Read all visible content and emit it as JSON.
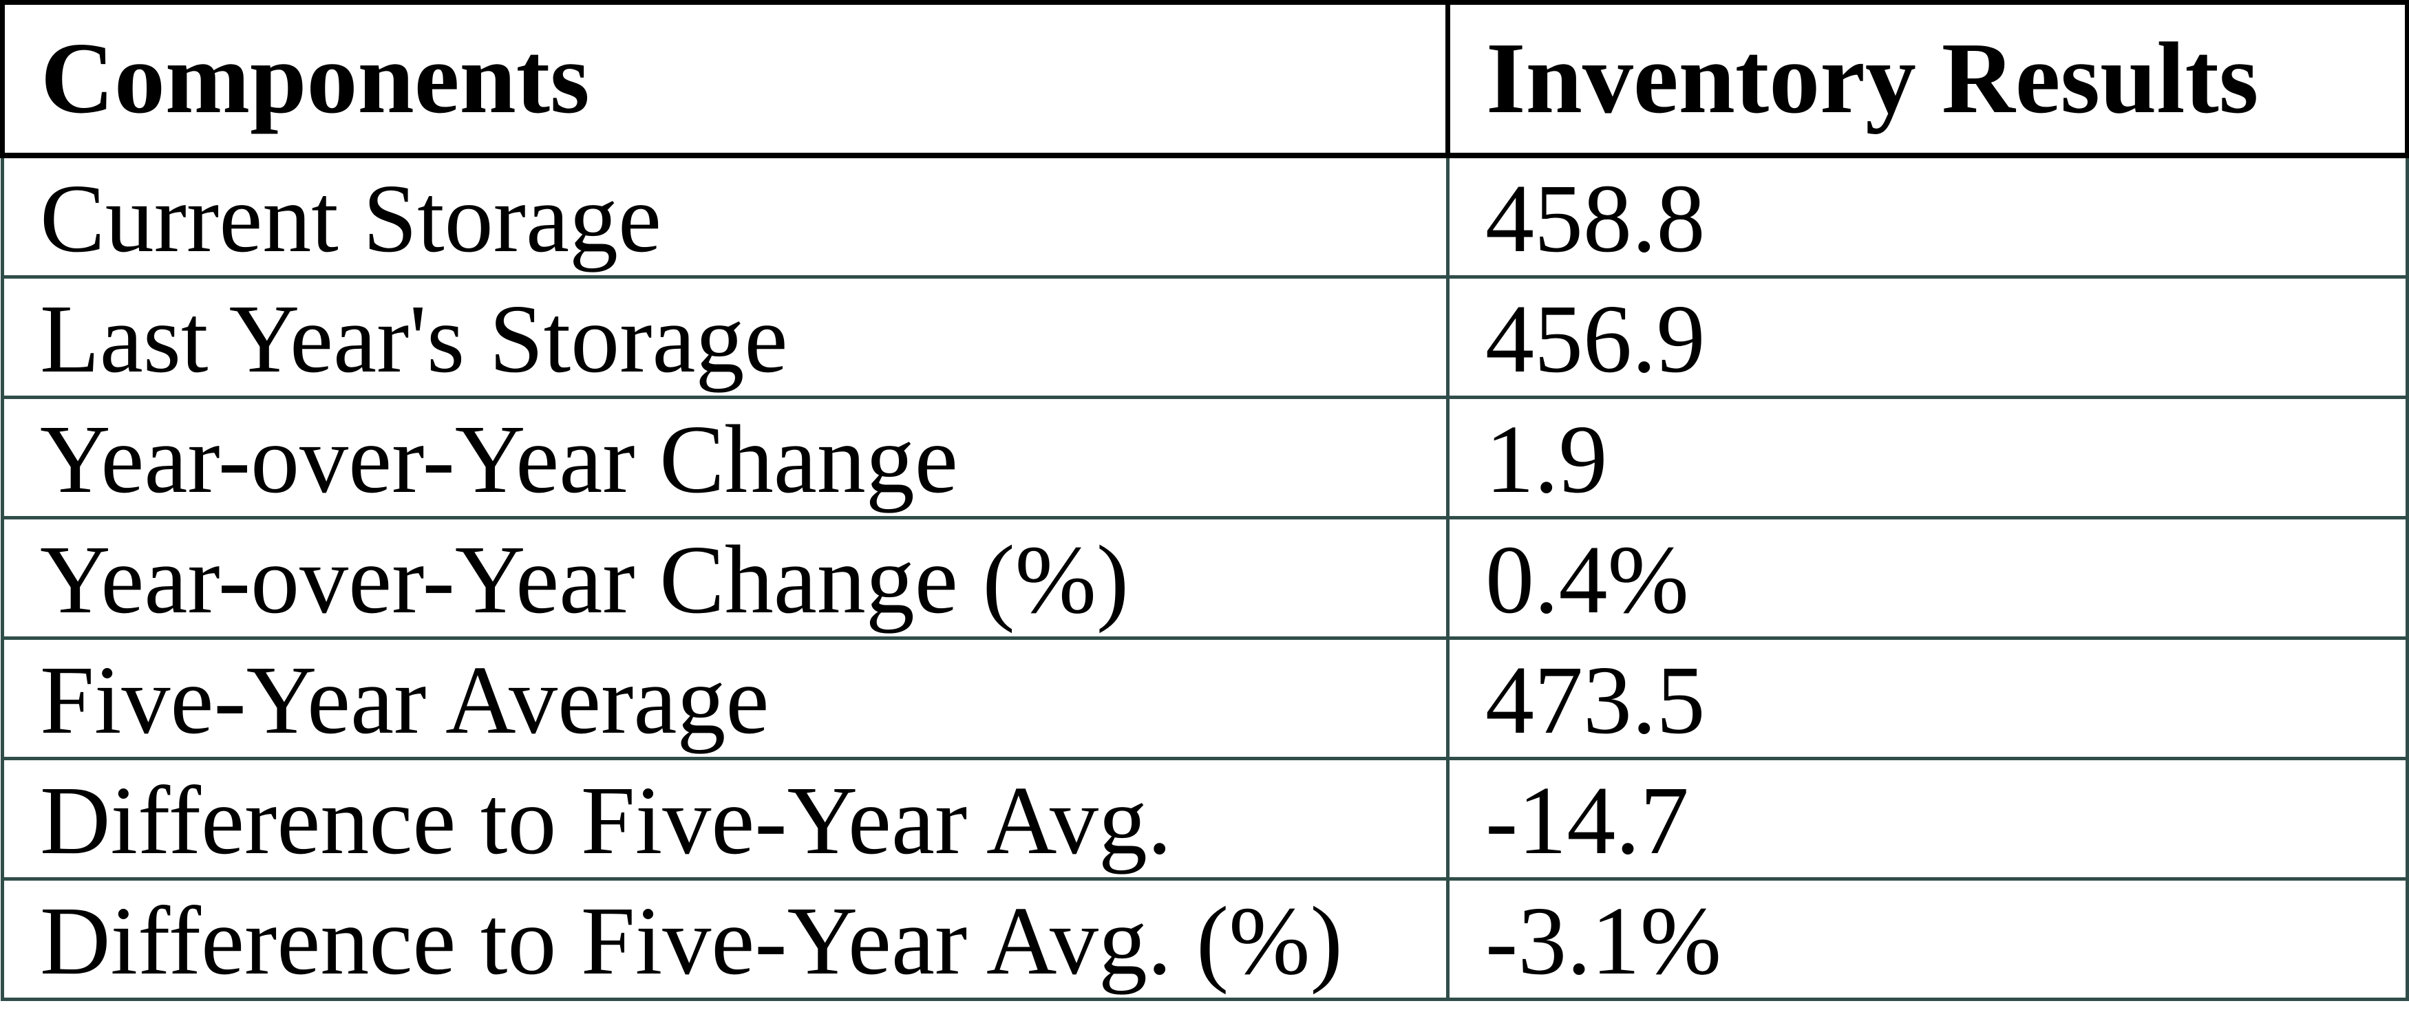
{
  "table": {
    "header": [
      "Components",
      "Inventory Results"
    ],
    "rows": [
      {
        "label": "Current Storage",
        "value": "458.8"
      },
      {
        "label": "Last Year's Storage",
        "value": "456.9"
      },
      {
        "label": "Year-over-Year Change",
        "value": "1.9"
      },
      {
        "label": "Year-over-Year Change (%)",
        "value": "0.4%"
      },
      {
        "label": "Five-Year Average",
        "value": "473.5"
      },
      {
        "label": "Difference to Five-Year Avg.",
        "value": "-14.7"
      },
      {
        "label": "Difference to Five-Year Avg. (%)",
        "value": "-3.1%"
      }
    ]
  },
  "chart_data": {
    "type": "table",
    "title": "",
    "columns": [
      "Components",
      "Inventory Results"
    ],
    "categories": [
      "Current Storage",
      "Last Year's Storage",
      "Year-over-Year Change",
      "Year-over-Year Change (%)",
      "Five-Year Average",
      "Difference to Five-Year Avg.",
      "Difference to Five-Year Avg. (%)"
    ],
    "values": [
      458.8,
      456.9,
      1.9,
      "0.4%",
      473.5,
      -14.7,
      "-3.1%"
    ]
  },
  "colors": {
    "header_border": "#000000",
    "body_border": "#304D49",
    "text": "#000000",
    "background": "#FFFFFF"
  }
}
